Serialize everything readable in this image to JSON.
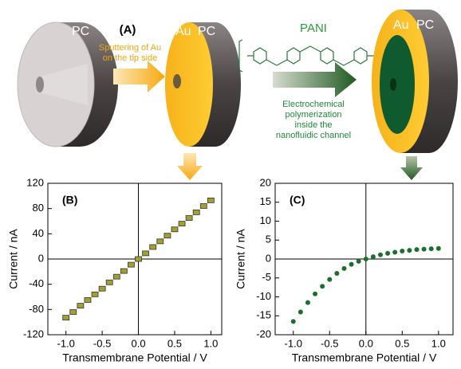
{
  "diagram": {
    "panel_label": "(A)",
    "disk1_label": "PC",
    "disk2_labels": [
      "Au",
      "PC"
    ],
    "disk3_labels": [
      "Au",
      "PC"
    ],
    "step1_lines": [
      "Sputtering of Au",
      "on the tip side"
    ],
    "polymer": "PANI",
    "step2_lines": [
      "Electrochemical",
      "polymerization",
      "inside the",
      "nanofluidic channel"
    ]
  },
  "chart_data": [
    {
      "type": "scatter",
      "panel_label": "(B)",
      "x_label": "Transmembrane Potential / V",
      "y_label": "Current / nA",
      "marker": "square",
      "color": "#a3a030",
      "x": [
        -1.0,
        -0.9,
        -0.8,
        -0.7,
        -0.6,
        -0.5,
        -0.4,
        -0.3,
        -0.2,
        -0.1,
        0.0,
        0.1,
        0.2,
        0.3,
        0.4,
        0.5,
        0.6,
        0.7,
        0.8,
        0.9,
        1.0
      ],
      "values": [
        -93,
        -84,
        -74,
        -65,
        -56,
        -47,
        -37,
        -28,
        -19,
        -9,
        0,
        9,
        19,
        28,
        37,
        47,
        56,
        65,
        74,
        84,
        93
      ],
      "xlim": [
        -1.25,
        1.15
      ],
      "xticks": [
        {
          "value": -1,
          "label": "-1.0"
        },
        -0.5,
        {
          "value": 0,
          "label": "0.0"
        },
        0.5,
        {
          "value": 1,
          "label": "1.0"
        }
      ],
      "ylim": [
        -120,
        120
      ],
      "yticks": [
        -120,
        -80,
        -40,
        0,
        40,
        80,
        120
      ]
    },
    {
      "type": "scatter",
      "panel_label": "(C)",
      "x_label": "Transmembrane Potential / V",
      "y_label": "Current / nA",
      "marker": "circle",
      "color": "#1b6e2e",
      "x": [
        -1.0,
        -0.9,
        -0.8,
        -0.7,
        -0.6,
        -0.5,
        -0.4,
        -0.3,
        -0.2,
        -0.1,
        0.0,
        0.1,
        0.2,
        0.3,
        0.4,
        0.5,
        0.6,
        0.7,
        0.8,
        0.9,
        1.0
      ],
      "values": [
        -16.5,
        -14,
        -11.5,
        -9.2,
        -7.2,
        -5.4,
        -3.8,
        -2.5,
        -1.4,
        -0.6,
        0,
        0.6,
        1.1,
        1.5,
        1.8,
        2.1,
        2.3,
        2.5,
        2.6,
        2.7,
        2.8
      ],
      "xlim": [
        -1.25,
        1.2
      ],
      "xticks": [
        {
          "value": -1,
          "label": "-1.0"
        },
        -0.5,
        {
          "value": 0,
          "label": "0.0"
        },
        0.5,
        {
          "value": 1,
          "label": "1.0"
        }
      ],
      "ylim": [
        -20,
        20
      ],
      "yticks": [
        -20,
        -15,
        -10,
        -5,
        0,
        5,
        10,
        15,
        20
      ]
    }
  ]
}
